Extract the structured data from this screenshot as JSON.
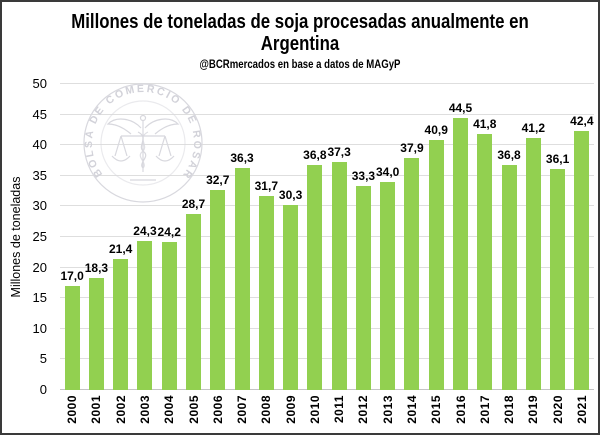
{
  "header": {
    "title_line1": "Millones de toneladas de soja procesadas anualmente en",
    "title_line2": "Argentina",
    "subtitle": "@BCRmercados en base a datos de MAGyP"
  },
  "watermark": {
    "text": "BOLSA DE COMERCIO DE ROSARIO"
  },
  "chart_data": {
    "type": "bar",
    "title": "Millones de toneladas de soja procesadas anualmente en Argentina",
    "subtitle": "@BCRmercados en base a datos de MAGyP",
    "xlabel": "",
    "ylabel": "Millones de toneladas",
    "categories": [
      "2000",
      "2001",
      "2002",
      "2003",
      "2004",
      "2005",
      "2006",
      "2007",
      "2008",
      "2009",
      "2010",
      "2011",
      "2012",
      "2013",
      "2014",
      "2015",
      "2016",
      "2017",
      "2018",
      "2019",
      "2020",
      "2021"
    ],
    "values": [
      17.0,
      18.3,
      21.4,
      24.3,
      24.2,
      28.7,
      32.7,
      36.3,
      31.7,
      30.3,
      36.8,
      37.3,
      33.3,
      34.0,
      37.9,
      40.9,
      44.5,
      41.8,
      36.8,
      41.2,
      36.1,
      42.4
    ],
    "value_labels": [
      "17,0",
      "18,3",
      "21,4",
      "24,3",
      "24,2",
      "28,7",
      "32,7",
      "36,3",
      "31,7",
      "30,3",
      "36,8",
      "37,3",
      "33,3",
      "34,0",
      "37,9",
      "40,9",
      "44,5",
      "41,8",
      "36,8",
      "41,2",
      "36,1",
      "42,4"
    ],
    "ylim": [
      0,
      50
    ],
    "ytick_step": 5,
    "grid": true,
    "legend_position": "none",
    "bar_color": "#92d050",
    "gridline_color": "#dedede",
    "axis_line_color": "#c4c4c4",
    "frame_border_color": "#3a3a3a",
    "watermark_color": "#d8d8de"
  }
}
